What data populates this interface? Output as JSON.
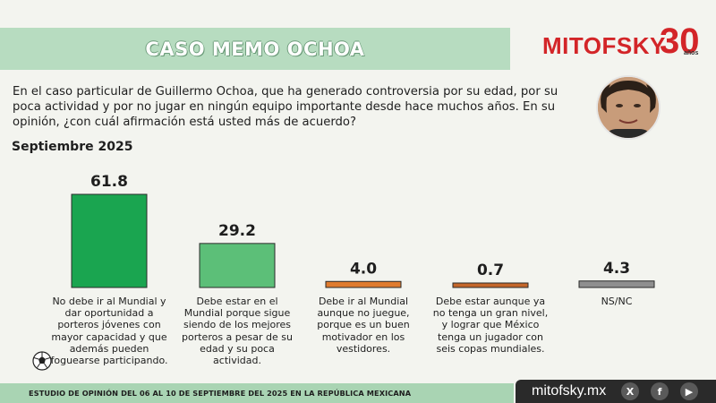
{
  "header": {
    "title": "CASO MEMO OCHOA"
  },
  "logo": {
    "brand": "MITOFSKY",
    "anniversary": "30",
    "anniversary_unit": "años"
  },
  "question": "En el caso particular de Guillermo Ochoa, que ha generado controversia por su edad, por su poca actividad y por no jugar en ningún equipo importante desde hace muchos años. En su opinión, ¿con cuál afirmación está usted más de acuerdo?",
  "date_label": "Septiembre 2025",
  "chart_data": {
    "type": "bar",
    "categories": [
      "No debe ir al Mundial y dar oportunidad a porteros jóvenes con mayor capacidad y que además pueden foguearse participando.",
      "Debe estar en el Mundial porque sigue siendo de los mejores porteros a pesar de su edad y su poca actividad.",
      "Debe ir al Mundial aunque no juegue, porque es un buen motivador en los vestidores.",
      "Debe estar aunque ya no tenga un gran nivel, y lograr que México tenga un jugador con seis copas mundiales.",
      "NS/NC"
    ],
    "values": [
      61.8,
      29.2,
      4.0,
      0.7,
      4.3
    ],
    "value_labels": [
      "61.8",
      "29.2",
      "4.0",
      "0.7",
      "4.3"
    ],
    "colors": [
      "#1aa550",
      "#5cbf78",
      "#e07b2e",
      "#c4662a",
      "#8f8f8f"
    ],
    "ylim": [
      0,
      61.8
    ],
    "grid": false,
    "legend": "none"
  },
  "footer": {
    "study_text": "ESTUDIO DE OPINIÓN DEL 06 AL 10 DE SEPTIEMBRE DEL 2025 EN LA REPÚBLICA MEXICANA",
    "site": "mitofsky.mx",
    "social": [
      "x-icon",
      "facebook-icon",
      "youtube-icon"
    ]
  }
}
